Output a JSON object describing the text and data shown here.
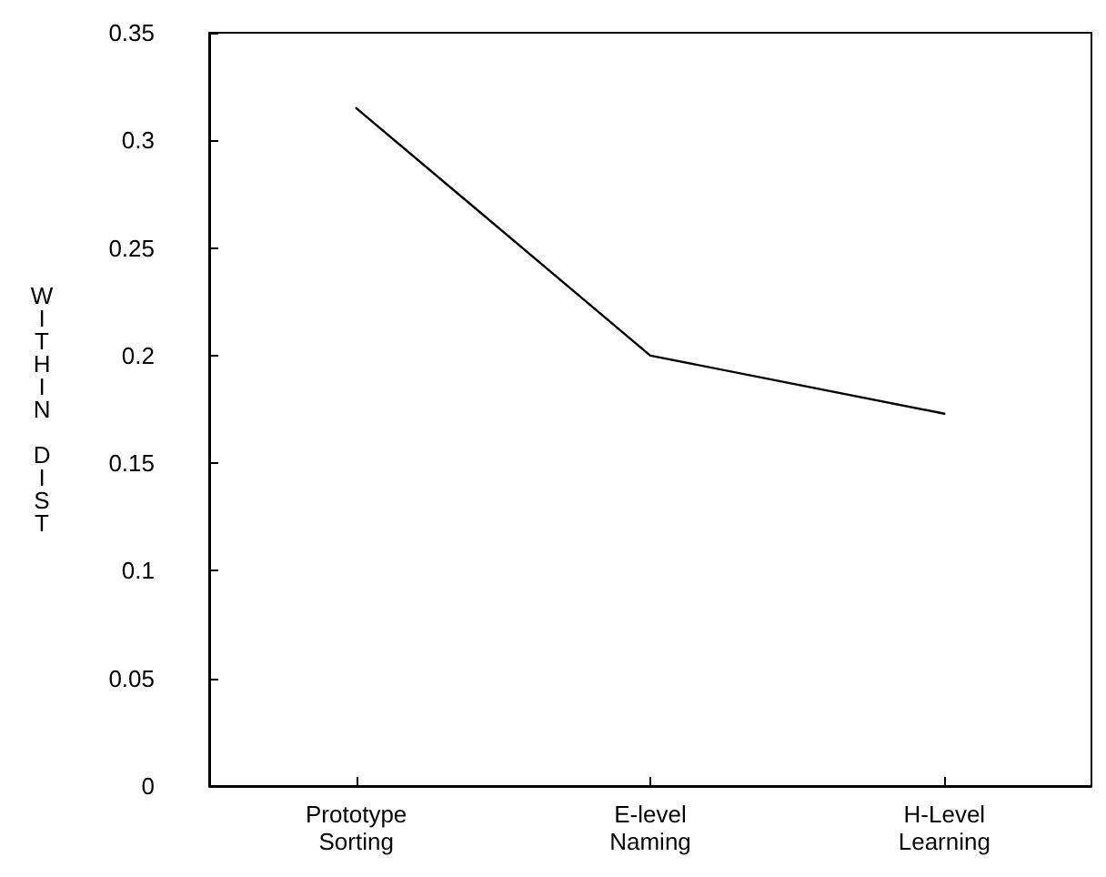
{
  "chart_data": {
    "type": "line",
    "ylabel": "WITHIN DIST",
    "categories": [
      "Prototype\nSorting",
      "E-level\nNaming",
      "H-Level\nLearning"
    ],
    "series": [
      {
        "color": "#000000",
        "values": [
          0.315,
          0.2,
          0.173
        ]
      }
    ],
    "ylim": [
      0,
      0.35
    ],
    "yticks": [
      0,
      0.05,
      0.1,
      0.15,
      0.2,
      0.25,
      0.3,
      0.35
    ],
    "grid": false,
    "marker": "none",
    "line_style": "solid"
  }
}
